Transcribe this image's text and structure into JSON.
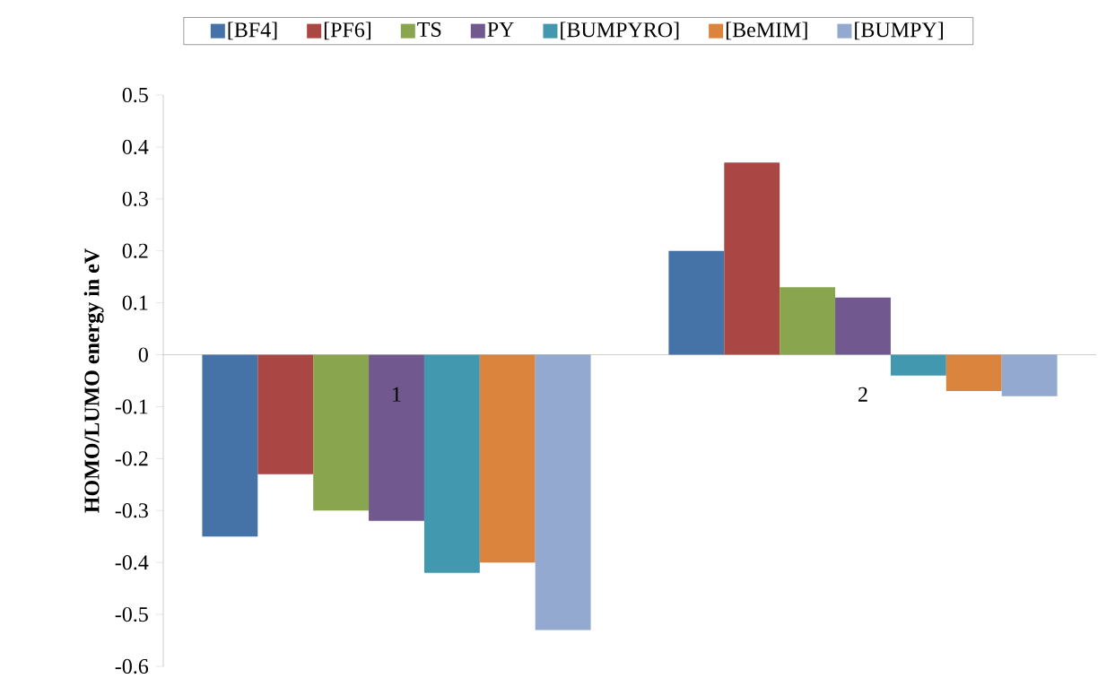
{
  "chart_data": {
    "type": "bar",
    "ylabel": "HOMO/LUMO energy in eV",
    "categories": [
      "1",
      "2"
    ],
    "series": [
      {
        "name": "[BF4]",
        "color": "#4572a7",
        "values": [
          -0.35,
          0.2
        ]
      },
      {
        "name": "[PF6]",
        "color": "#aa4643",
        "values": [
          -0.23,
          0.37
        ]
      },
      {
        "name": "TS",
        "color": "#89a54e",
        "values": [
          -0.3,
          0.13
        ]
      },
      {
        "name": "PY",
        "color": "#71588f",
        "values": [
          -0.32,
          0.11
        ]
      },
      {
        "name": "[BUMPYRO]",
        "color": "#4198af",
        "values": [
          -0.42,
          -0.04
        ]
      },
      {
        "name": "[BeMIM]",
        "color": "#db843d",
        "values": [
          -0.4,
          -0.07
        ]
      },
      {
        "name": "[BUMPY]",
        "color": "#93a9cf",
        "values": [
          -0.53,
          -0.08
        ]
      }
    ],
    "ylim": [
      -0.6,
      0.5
    ],
    "yticks": [
      -0.6,
      -0.5,
      -0.4,
      -0.3,
      -0.2,
      -0.1,
      0,
      0.1,
      0.2,
      0.3,
      0.4,
      0.5
    ],
    "legend": "top"
  }
}
